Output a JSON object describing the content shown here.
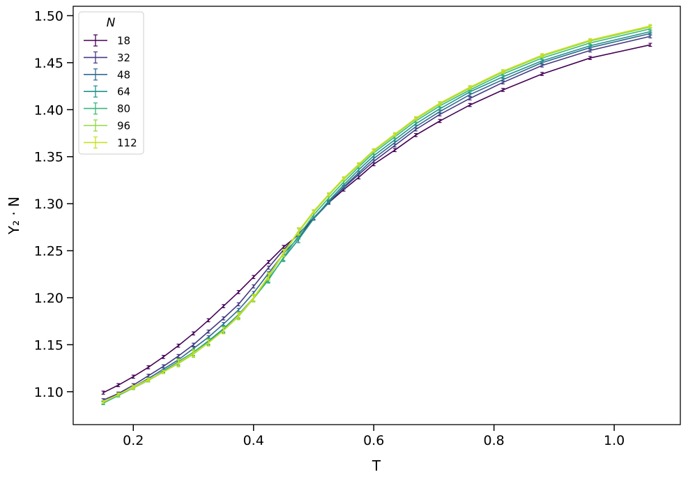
{
  "chart_data": {
    "type": "line",
    "xlabel": "T",
    "ylabel": "Y₂ · N",
    "xlim": [
      0.1,
      1.11
    ],
    "ylim": [
      1.065,
      1.51
    ],
    "xticks": [
      0.2,
      0.4,
      0.6,
      0.8,
      1.0
    ],
    "xtick_labels": [
      "0.2",
      "0.4",
      "0.6",
      "0.8",
      "1.0"
    ],
    "yticks": [
      1.1,
      1.15,
      1.2,
      1.25,
      1.3,
      1.35,
      1.4,
      1.45,
      1.5
    ],
    "ytick_labels": [
      "1.10",
      "1.15",
      "1.20",
      "1.25",
      "1.30",
      "1.35",
      "1.40",
      "1.45",
      "1.50"
    ],
    "grid": false,
    "error_bars": true,
    "legend": {
      "title": "N",
      "placement": "top-left"
    },
    "x": [
      0.15,
      0.175,
      0.2,
      0.225,
      0.25,
      0.275,
      0.3,
      0.325,
      0.35,
      0.375,
      0.4,
      0.425,
      0.45,
      0.475,
      0.5,
      0.525,
      0.55,
      0.575,
      0.6,
      0.635,
      0.67,
      0.71,
      0.76,
      0.815,
      0.88,
      0.96,
      1.06
    ],
    "series": [
      {
        "name": "18",
        "color": "#440154",
        "values": [
          1.099,
          1.107,
          1.116,
          1.126,
          1.137,
          1.149,
          1.162,
          1.176,
          1.191,
          1.206,
          1.222,
          1.238,
          1.254,
          1.267,
          1.284,
          1.301,
          1.315,
          1.328,
          1.342,
          1.357,
          1.373,
          1.388,
          1.405,
          1.421,
          1.438,
          1.455,
          1.469
        ]
      },
      {
        "name": "32",
        "color": "#443983",
        "values": [
          1.091,
          1.098,
          1.107,
          1.117,
          1.127,
          1.138,
          1.15,
          1.164,
          1.178,
          1.193,
          1.212,
          1.232,
          1.251,
          1.268,
          1.285,
          1.302,
          1.317,
          1.331,
          1.345,
          1.362,
          1.379,
          1.395,
          1.412,
          1.429,
          1.447,
          1.463,
          1.478
        ]
      },
      {
        "name": "48",
        "color": "#31688e",
        "values": [
          1.088,
          1.096,
          1.105,
          1.114,
          1.124,
          1.134,
          1.146,
          1.158,
          1.172,
          1.187,
          1.205,
          1.226,
          1.247,
          1.264,
          1.284,
          1.301,
          1.318,
          1.333,
          1.348,
          1.365,
          1.382,
          1.398,
          1.416,
          1.432,
          1.45,
          1.466,
          1.481
        ]
      },
      {
        "name": "64",
        "color": "#21918c",
        "values": [
          1.088,
          1.096,
          1.104,
          1.112,
          1.122,
          1.132,
          1.142,
          1.154,
          1.167,
          1.182,
          1.2,
          1.22,
          1.242,
          1.262,
          1.284,
          1.303,
          1.32,
          1.336,
          1.351,
          1.368,
          1.385,
          1.401,
          1.419,
          1.435,
          1.452,
          1.468,
          1.483
        ]
      },
      {
        "name": "80",
        "color": "#35b779",
        "values": [
          1.088,
          1.096,
          1.104,
          1.112,
          1.121,
          1.131,
          1.142,
          1.153,
          1.166,
          1.181,
          1.199,
          1.219,
          1.243,
          1.266,
          1.288,
          1.306,
          1.323,
          1.339,
          1.354,
          1.371,
          1.388,
          1.404,
          1.421,
          1.438,
          1.455,
          1.471,
          1.486
        ]
      },
      {
        "name": "96",
        "color": "#90d743",
        "values": [
          1.089,
          1.097,
          1.104,
          1.112,
          1.121,
          1.13,
          1.14,
          1.152,
          1.165,
          1.18,
          1.199,
          1.222,
          1.247,
          1.27,
          1.291,
          1.309,
          1.326,
          1.341,
          1.356,
          1.373,
          1.39,
          1.406,
          1.423,
          1.44,
          1.457,
          1.473,
          1.488
        ]
      },
      {
        "name": "112",
        "color": "#c8e020",
        "values": [
          1.089,
          1.097,
          1.105,
          1.113,
          1.121,
          1.131,
          1.141,
          1.152,
          1.165,
          1.181,
          1.2,
          1.223,
          1.248,
          1.271,
          1.292,
          1.31,
          1.327,
          1.342,
          1.357,
          1.374,
          1.391,
          1.407,
          1.424,
          1.441,
          1.458,
          1.474,
          1.489
        ]
      }
    ]
  }
}
